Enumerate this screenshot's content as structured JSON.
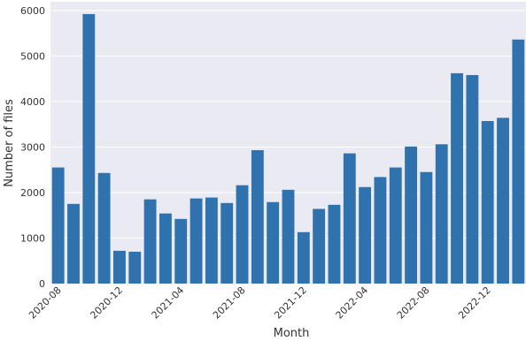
{
  "chart_data": {
    "type": "bar",
    "x_label": "Month",
    "y_label": "Number of files",
    "categories": [
      "2020-08",
      null,
      null,
      null,
      "2020-12",
      null,
      null,
      null,
      "2021-04",
      null,
      null,
      null,
      "2021-08",
      null,
      null,
      null,
      "2021-12",
      null,
      null,
      null,
      "2022-04",
      null,
      null,
      null,
      "2022-08",
      null,
      null,
      null,
      "2022-12",
      null,
      null
    ],
    "values": [
      2550,
      1750,
      5920,
      2430,
      720,
      700,
      1850,
      1540,
      1420,
      1870,
      1890,
      1770,
      2160,
      2930,
      1790,
      2060,
      1130,
      1640,
      1730,
      2860,
      2120,
      2340,
      2550,
      3010,
      2450,
      3060,
      4620,
      4580,
      3570,
      3640,
      5360
    ],
    "color": "#2f72ae",
    "ylim": [
      0,
      6190
    ],
    "yticks": [
      0,
      1000,
      2000,
      3000,
      4000,
      5000,
      6000
    ],
    "grid": true
  }
}
